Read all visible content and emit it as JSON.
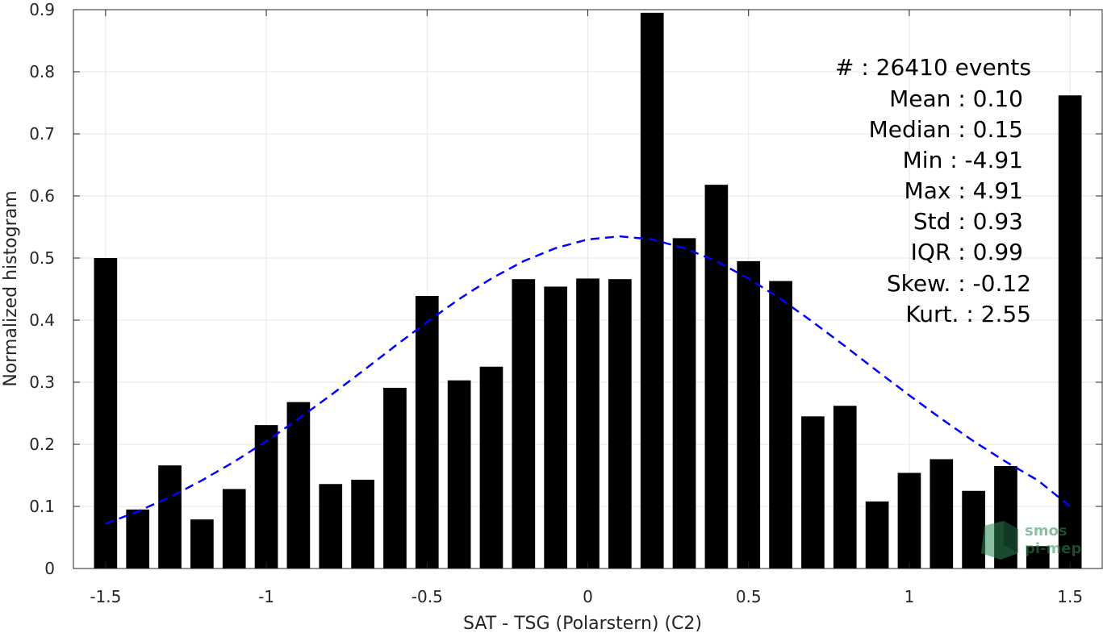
{
  "chart_data": {
    "type": "bar",
    "xlabel": "SAT - TSG (Polarstern) (C2)",
    "ylabel": "Normalized histogram",
    "xlim": [
      -1.6,
      1.6
    ],
    "ylim": [
      0,
      0.9
    ],
    "xticks": [
      -1.5,
      -1,
      -0.5,
      0,
      0.5,
      1,
      1.5
    ],
    "xtick_labels": [
      "-1.5",
      "-1",
      "-0.5",
      "0",
      "0.5",
      "1",
      "1.5"
    ],
    "yticks": [
      0,
      0.1,
      0.2,
      0.3,
      0.4,
      0.5,
      0.6,
      0.7,
      0.8,
      0.9
    ],
    "ytick_labels": [
      "0",
      "0.1",
      "0.2",
      "0.3",
      "0.4",
      "0.5",
      "0.6",
      "0.7",
      "0.8",
      "0.9"
    ],
    "grid": true,
    "bar_color": "#000000",
    "bars": {
      "x": [
        -1.5,
        -1.4,
        -1.3,
        -1.2,
        -1.1,
        -1.0,
        -0.9,
        -0.8,
        -0.7,
        -0.6,
        -0.5,
        -0.4,
        -0.3,
        -0.2,
        -0.1,
        0.0,
        0.1,
        0.2,
        0.3,
        0.4,
        0.5,
        0.6,
        0.7,
        0.8,
        0.9,
        1.0,
        1.1,
        1.2,
        1.3,
        1.4,
        1.5
      ],
      "values": [
        0.5,
        0.095,
        0.166,
        0.079,
        0.128,
        0.231,
        0.268,
        0.136,
        0.143,
        0.291,
        0.439,
        0.303,
        0.325,
        0.466,
        0.454,
        0.467,
        0.466,
        0.895,
        0.532,
        0.618,
        0.495,
        0.463,
        0.245,
        0.262,
        0.108,
        0.154,
        0.176,
        0.125,
        0.165,
        0.036,
        0.762
      ]
    },
    "fit_curve": {
      "name": "",
      "style": "dashed",
      "color": "#0000ff",
      "x": [
        -1.5,
        -1.4,
        -1.3,
        -1.2,
        -1.1,
        -1.0,
        -0.9,
        -0.8,
        -0.7,
        -0.6,
        -0.5,
        -0.4,
        -0.3,
        -0.2,
        -0.1,
        0.0,
        0.1,
        0.2,
        0.3,
        0.4,
        0.5,
        0.6,
        0.7,
        0.8,
        0.9,
        1.0,
        1.1,
        1.2,
        1.3,
        1.4,
        1.5
      ],
      "values": [
        0.072,
        0.092,
        0.115,
        0.142,
        0.172,
        0.205,
        0.241,
        0.279,
        0.318,
        0.358,
        0.397,
        0.434,
        0.467,
        0.495,
        0.516,
        0.53,
        0.535,
        0.53,
        0.516,
        0.495,
        0.467,
        0.434,
        0.397,
        0.358,
        0.318,
        0.279,
        0.241,
        0.205,
        0.172,
        0.142,
        0.1
      ]
    }
  },
  "stats": {
    "lines": [
      "#  : 26410 events",
      "Mean : 0.10",
      "Median : 0.15",
      "Min : -4.91",
      "Max : 4.91",
      "Std : 0.93",
      "IQR : 0.99",
      "Skew. : -0.12",
      "Kurt. : 2.55"
    ]
  },
  "watermark": {
    "line1": "smos",
    "line2": "pi-mep",
    "color": "#2e8b57"
  }
}
